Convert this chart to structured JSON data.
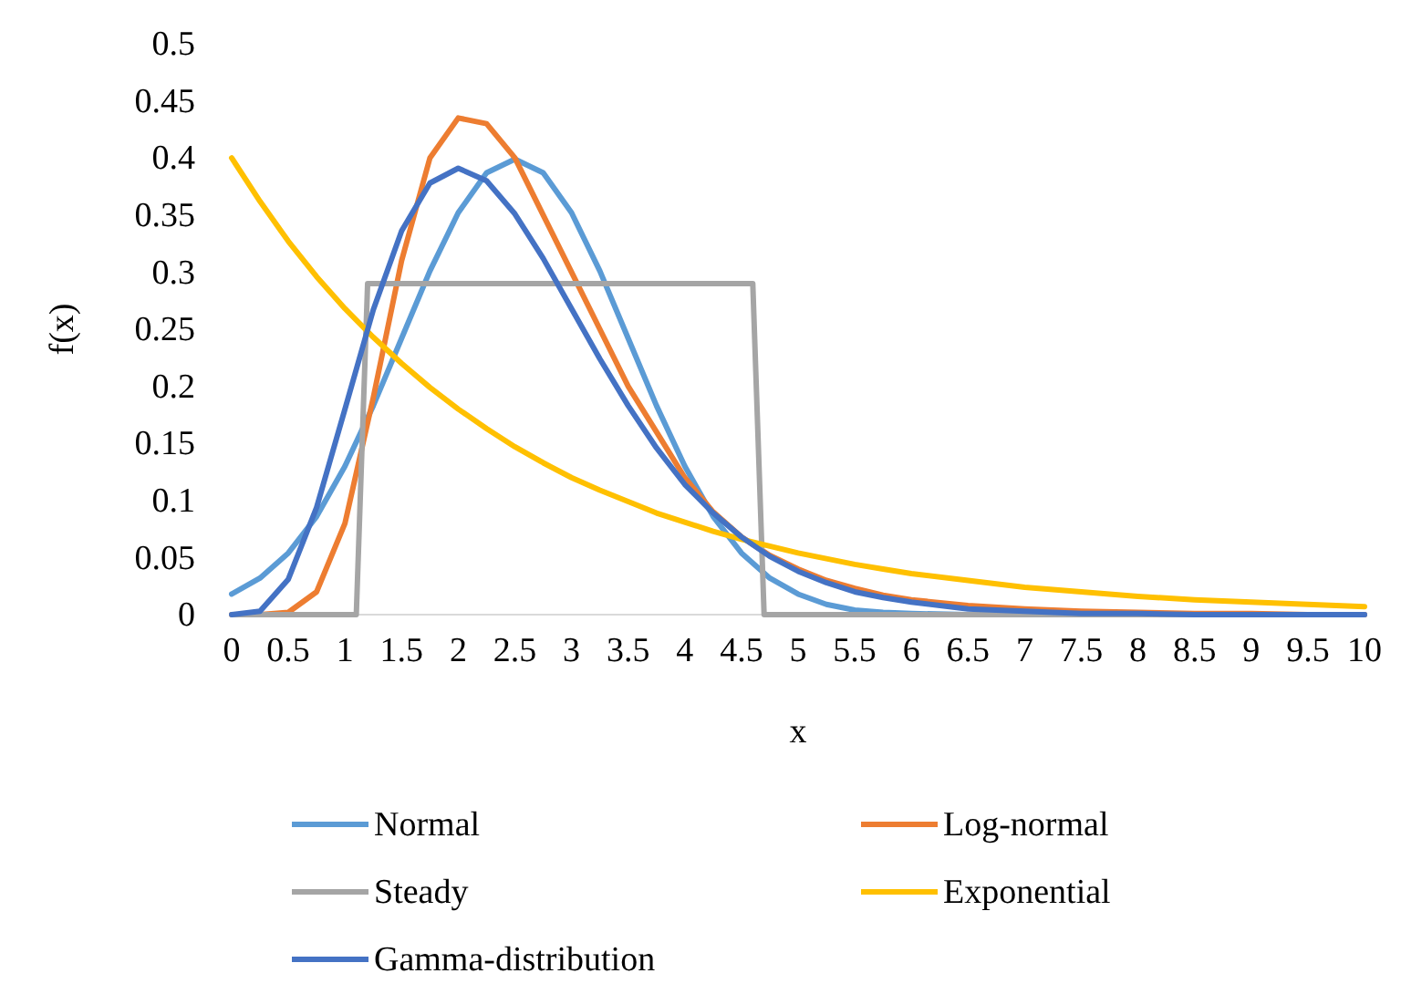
{
  "chart_data": {
    "type": "line",
    "xlabel": "x",
    "ylabel": "f(x)",
    "x": [
      0,
      0.25,
      0.5,
      0.75,
      1,
      1.25,
      1.5,
      1.75,
      2,
      2.25,
      2.5,
      2.75,
      3,
      3.25,
      3.5,
      3.75,
      4,
      4.25,
      4.5,
      4.75,
      5,
      5.25,
      5.5,
      5.75,
      6,
      6.5,
      7,
      7.5,
      8,
      8.5,
      9,
      9.5,
      10
    ],
    "series": [
      {
        "name": "Normal",
        "color": "#5b9bd5",
        "values": [
          0.018,
          0.032,
          0.054,
          0.086,
          0.13,
          0.183,
          0.242,
          0.301,
          0.352,
          0.387,
          0.399,
          0.387,
          0.352,
          0.301,
          0.242,
          0.183,
          0.13,
          0.086,
          0.054,
          0.032,
          0.018,
          0.009,
          0.004,
          0.002,
          0.001,
          0,
          0,
          0,
          0,
          0,
          0,
          0,
          0
        ]
      },
      {
        "name": "Log-normal",
        "color": "#ed7d31",
        "values": [
          0,
          0,
          0.002,
          0.02,
          0.08,
          0.19,
          0.31,
          0.4,
          0.435,
          0.43,
          0.4,
          0.35,
          0.3,
          0.25,
          0.2,
          0.16,
          0.12,
          0.09,
          0.068,
          0.052,
          0.04,
          0.03,
          0.023,
          0.017,
          0.013,
          0.008,
          0.005,
          0.003,
          0.002,
          0.001,
          0.001,
          0,
          0
        ]
      },
      {
        "name": "Steady",
        "color": "#a5a5a5",
        "x": [
          0,
          1.1,
          1.2,
          4.6,
          4.7,
          10
        ],
        "values": [
          0,
          0,
          0.29,
          0.29,
          0,
          0
        ]
      },
      {
        "name": "Exponential",
        "color": "#ffc000",
        "values": [
          0.4,
          0.362,
          0.327,
          0.296,
          0.268,
          0.243,
          0.22,
          0.199,
          0.18,
          0.163,
          0.147,
          0.133,
          0.12,
          0.109,
          0.099,
          0.089,
          0.081,
          0.073,
          0.066,
          0.06,
          0.054,
          0.049,
          0.044,
          0.04,
          0.036,
          0.03,
          0.024,
          0.02,
          0.016,
          0.013,
          0.011,
          0.009,
          0.007
        ]
      },
      {
        "name": "Gamma-distribution",
        "color": "#4472c4",
        "values": [
          0,
          0.003,
          0.031,
          0.094,
          0.18,
          0.267,
          0.336,
          0.378,
          0.391,
          0.38,
          0.351,
          0.312,
          0.268,
          0.224,
          0.183,
          0.146,
          0.114,
          0.089,
          0.068,
          0.051,
          0.038,
          0.028,
          0.02,
          0.015,
          0.011,
          0.005,
          0.003,
          0.001,
          0.001,
          0,
          0,
          0,
          0
        ]
      }
    ],
    "xlim": [
      0,
      10
    ],
    "xticks": [
      0,
      0.5,
      1,
      1.5,
      2,
      2.5,
      3,
      3.5,
      4,
      4.5,
      5,
      5.5,
      6,
      6.5,
      7,
      7.5,
      8,
      8.5,
      9,
      9.5,
      10
    ],
    "ylim": [
      0,
      0.5
    ],
    "yticks": [
      0,
      0.05,
      0.1,
      0.15,
      0.2,
      0.25,
      0.3,
      0.35,
      0.4,
      0.45,
      0.5
    ],
    "grid": false,
    "legend": "bottom",
    "marker": "none",
    "line_style": "solid"
  }
}
